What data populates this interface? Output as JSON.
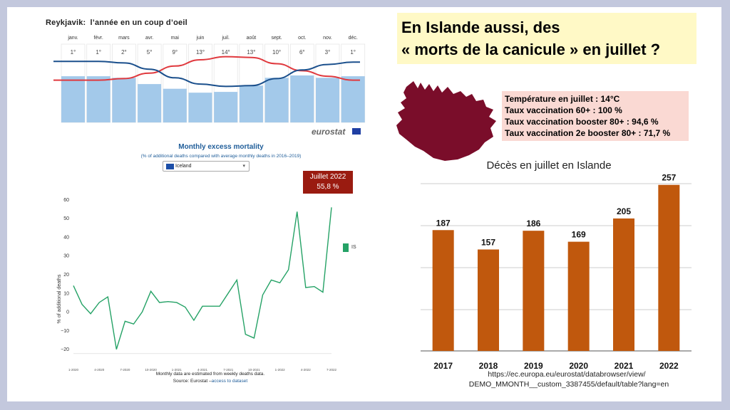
{
  "climate": {
    "city": "Reykjavik:",
    "title": "l’année en un coup d’oeil",
    "months": [
      "janv.",
      "févr.",
      "mars",
      "avr.",
      "mai",
      "juin",
      "juil.",
      "août",
      "sept.",
      "oct.",
      "nov.",
      "déc."
    ],
    "temps": [
      "1°",
      "1°",
      "2°",
      "5°",
      "9°",
      "13°",
      "14°",
      "13°",
      "10°",
      "6°",
      "3°",
      "1°"
    ],
    "precip_relative": [
      0.59,
      0.59,
      0.57,
      0.49,
      0.43,
      0.38,
      0.39,
      0.47,
      0.57,
      0.6,
      0.57,
      0.59
    ],
    "high_line": [
      46,
      46,
      44,
      37,
      28,
      20,
      16,
      17,
      25,
      34,
      41,
      46
    ],
    "low_line": [
      22,
      22,
      24,
      32,
      43,
      51,
      54,
      53,
      44,
      33,
      26,
      23
    ],
    "high_color": "#e0393e",
    "low_color": "#1a4f8c",
    "bar_color": "#a3c9ea",
    "logo": "eurostat"
  },
  "headline": {
    "line1": "En Islande aussi, des",
    "line2": "« morts de la canicule » en juillet ?"
  },
  "info": {
    "lines": [
      "Température en juillet : 14°C",
      "Taux vaccination 60+ : 100 %",
      "Taux vaccination booster 80+ : 94,6 %",
      "Taux vaccination 2e booster 80+ : 71,7 %"
    ]
  },
  "iceland_shape_color": "#7a0d2a",
  "mortality": {
    "title": "Monthly excess mortality",
    "subtitle": "(% of additional deaths compared with average monthly deaths in 2016–2019)",
    "country": "Iceland",
    "legend": "IS",
    "note": "Monthly data are estimated from weekly deaths data.",
    "source_prefix": "Source: Eurostat –",
    "source_link": "access to dataset",
    "callout_line1": "Juillet 2022",
    "callout_line2": "55,8 %"
  },
  "deaths_chart": {
    "title": "Décès en juillet en Islande",
    "url_line1": "https://ec.europa.eu/eurostat/databrowser/view/",
    "url_line2": "DEMO_MMONTH__custom_3387455/default/table?lang=en"
  },
  "chart_data": [
    {
      "type": "line",
      "title": "Monthly excess mortality",
      "ylabel": "% of additional deaths",
      "ylim": [
        -22,
        62
      ],
      "yticks": [
        60,
        50,
        40,
        30,
        20,
        10,
        0,
        -10,
        -20
      ],
      "xticks": [
        "1-2020",
        "4-2020",
        "7-2020",
        "10-2020",
        "1-2021",
        "4-2021",
        "7-2021",
        "10-2021",
        "1-2022",
        "4-2022",
        "7-2022"
      ],
      "series": [
        {
          "name": "IS",
          "color": "#25a266",
          "values": [
            14,
            4,
            -1,
            5,
            8,
            -20,
            -5,
            -6.5,
            0,
            11,
            5,
            5.5,
            5,
            2.5,
            -4.5,
            3,
            3,
            3,
            10,
            17,
            -12,
            -14,
            9,
            17,
            15.5,
            22.5,
            53.5,
            13,
            13.5,
            10.5,
            55.8
          ]
        }
      ]
    },
    {
      "type": "bar",
      "title": "Décès en juillet en Islande",
      "categories": [
        "2017",
        "2018",
        "2019",
        "2020",
        "2021",
        "2022"
      ],
      "values": [
        187,
        157,
        186,
        169,
        205,
        257
      ],
      "ylim": [
        0,
        260
      ],
      "color": "#c0580d"
    }
  ]
}
